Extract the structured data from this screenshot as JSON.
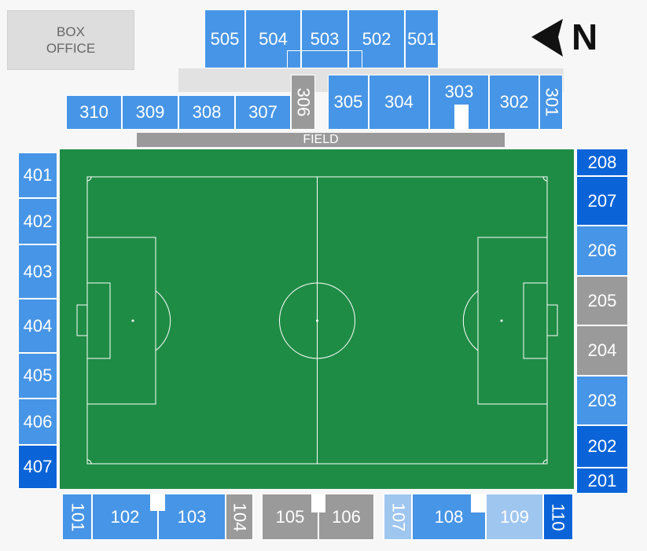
{
  "box_office": {
    "line1": "BOX",
    "line2": "OFFICE"
  },
  "compass": {
    "letter": "N",
    "icon": "north-arrow-icon"
  },
  "field": {
    "label": "FIELD"
  },
  "colors": {
    "light_blue": "#4795e6",
    "dark_blue": "#0a64d8",
    "pale_blue": "#9fc6ef",
    "gray": "#9a9a9a",
    "pitch": "#1f8c45"
  },
  "sections": {
    "s505": "505",
    "s504": "504",
    "s503": "503",
    "s502": "502",
    "s501": "501",
    "s310": "310",
    "s309": "309",
    "s308": "308",
    "s307": "307",
    "s306": "306",
    "s305": "305",
    "s304": "304",
    "s303": "303",
    "s302": "302",
    "s301": "301",
    "s401": "401",
    "s402": "402",
    "s403": "403",
    "s404": "404",
    "s405": "405",
    "s406": "406",
    "s407": "407",
    "s208": "208",
    "s207": "207",
    "s206": "206",
    "s205": "205",
    "s204": "204",
    "s203": "203",
    "s202": "202",
    "s201": "201",
    "s101": "101",
    "s102": "102",
    "s103": "103",
    "s104": "104",
    "s105": "105",
    "s106": "106",
    "s107": "107",
    "s108": "108",
    "s109": "109",
    "s110": "110"
  }
}
